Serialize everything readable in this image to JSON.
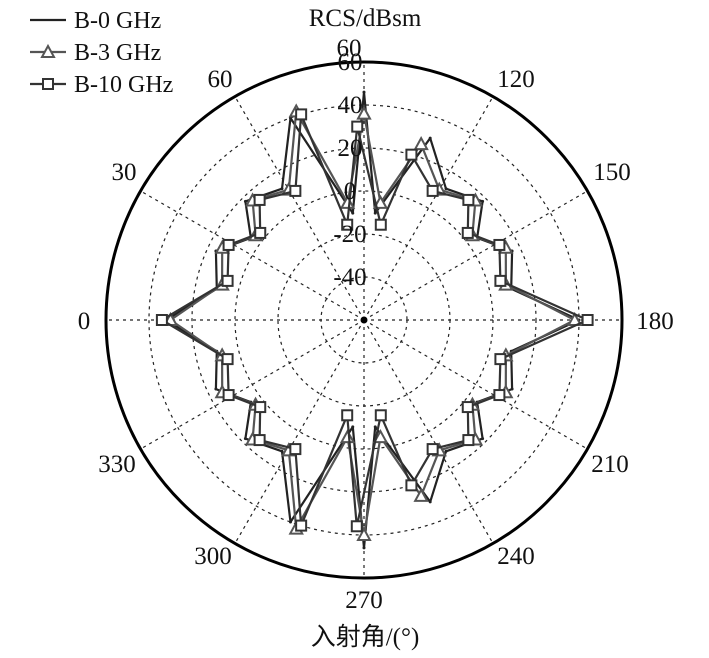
{
  "chart_data": {
    "type": "polar-line",
    "title": "",
    "radial_label": "RCS/dBsm",
    "angular_label": "入射角/(°)",
    "radial_range": [
      -60,
      60
    ],
    "radial_ticks": [
      60,
      40,
      20,
      0,
      -20,
      -40
    ],
    "angular_ticks": [
      0,
      30,
      60,
      60,
      120,
      150,
      180,
      210,
      240,
      270,
      300,
      330
    ],
    "grid": true,
    "legend_position": "top-left",
    "series": [
      {
        "name": "B-0 GHz",
        "marker": "none",
        "color": "#222222",
        "angles": [
          0,
          12,
          25,
          36,
          45,
          58,
          70,
          84,
          90,
          96,
          110,
          122,
          135,
          144,
          155,
          168,
          180,
          192,
          205,
          216,
          225,
          238,
          250,
          264,
          270,
          276,
          290,
          302,
          315,
          324,
          335,
          348
        ],
        "values": [
          32,
          10,
          16,
          5,
          18,
          12,
          40,
          -10,
          46,
          -10,
          30,
          12,
          18,
          5,
          16,
          10,
          40,
          10,
          16,
          5,
          18,
          12,
          30,
          -10,
          46,
          -10,
          40,
          12,
          18,
          5,
          16,
          10
        ]
      },
      {
        "name": "B-3 GHz",
        "marker": "triangle",
        "color": "#555555",
        "angles": [
          0,
          14,
          27,
          38,
          47,
          60,
          72,
          82,
          90,
          98,
          108,
          120,
          133,
          142,
          153,
          166,
          180,
          194,
          207,
          218,
          227,
          240,
          252,
          262,
          270,
          278,
          288,
          300,
          313,
          322,
          333,
          346
        ],
        "values": [
          30,
          8,
          14,
          4,
          16,
          10,
          42,
          -5,
          36,
          -5,
          26,
          10,
          16,
          4,
          14,
          8,
          38,
          8,
          14,
          4,
          16,
          10,
          26,
          -5,
          40,
          -5,
          42,
          10,
          16,
          4,
          14,
          8
        ]
      },
      {
        "name": "B-10 GHz",
        "marker": "square",
        "color": "#333333",
        "angles": [
          0,
          16,
          29,
          40,
          49,
          62,
          73,
          80,
          88,
          100,
          106,
          118,
          131,
          140,
          151,
          164,
          180,
          196,
          209,
          220,
          229,
          242,
          254,
          260,
          272,
          280,
          287,
          298,
          311,
          320,
          331,
          344
        ],
        "values": [
          34,
          6,
          12,
          3,
          14,
          8,
          40,
          -15,
          30,
          -15,
          20,
          8,
          14,
          3,
          12,
          6,
          44,
          6,
          12,
          3,
          14,
          8,
          20,
          -15,
          36,
          -15,
          40,
          8,
          14,
          3,
          12,
          6
        ]
      }
    ]
  }
}
